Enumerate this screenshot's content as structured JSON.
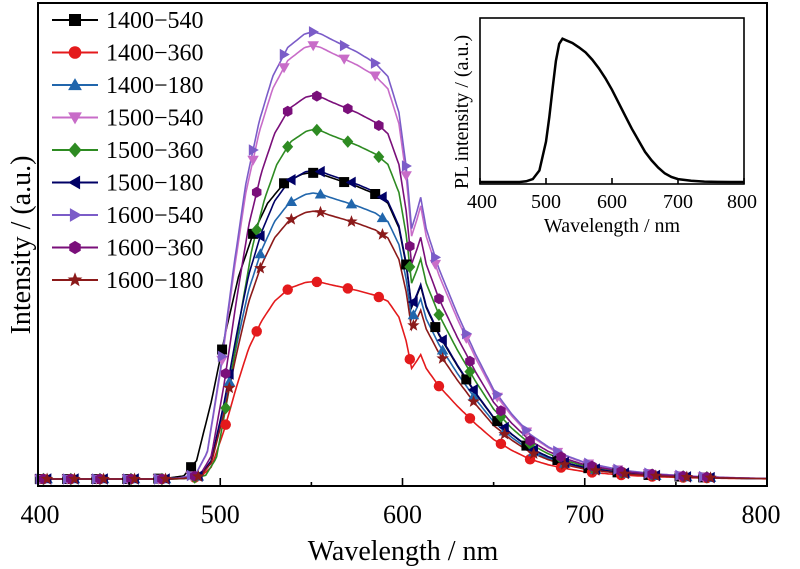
{
  "chart_data": [
    {
      "type": "line",
      "xlabel": "Wavelength / nm",
      "ylabel": "Intensity / (a.u.)",
      "xlim": [
        400,
        800
      ],
      "ylim": [
        0,
        1.0
      ],
      "xticks": [
        "400",
        "500",
        "600",
        "700",
        "800"
      ],
      "yticks_shown": false,
      "legend": {
        "placement": "top-left"
      },
      "peak_x": 550,
      "series": [
        {
          "name": "1400−540",
          "color": "#000000",
          "marker": "square",
          "peak": 0.675,
          "onset": 480
        },
        {
          "name": "1400−360",
          "color": "#e41a1c",
          "marker": "circle",
          "peak": 0.435,
          "onset": 490
        },
        {
          "name": "1400−180",
          "color": "#2166ac",
          "marker": "triangle-up",
          "peak": 0.63,
          "onset": 490
        },
        {
          "name": "1500−540",
          "color": "#c86cc8",
          "marker": "triangle-down",
          "peak": 0.955,
          "onset": 487
        },
        {
          "name": "1500−360",
          "color": "#2e8b22",
          "marker": "diamond",
          "peak": 0.77,
          "onset": 494
        },
        {
          "name": "1500−180",
          "color": "#000066",
          "marker": "triangle-left",
          "peak": 0.68,
          "onset": 490
        },
        {
          "name": "1600−540",
          "color": "#7b5cc8",
          "marker": "triangle-right",
          "peak": 0.985,
          "onset": 487
        },
        {
          "name": "1600−360",
          "color": "#7a0f7a",
          "marker": "hexagon",
          "peak": 0.845,
          "onset": 490
        },
        {
          "name": "1600−180",
          "color": "#8b1a1a",
          "marker": "star",
          "peak": 0.59,
          "onset": 490
        }
      ],
      "spike_x": 608
    },
    {
      "type": "line",
      "role": "inset",
      "xlabel": "Wavelength / nm",
      "ylabel": "PL intensity / (a.u.)",
      "xlim": [
        400,
        800
      ],
      "ylim": [
        0,
        1.0
      ],
      "xticks": [
        "400",
        "500",
        "600",
        "700",
        "800"
      ],
      "series": [
        {
          "color": "#000000",
          "x": [
            400,
            460,
            470,
            480,
            490,
            500,
            505,
            510,
            515,
            520,
            525,
            530,
            540,
            550,
            560,
            570,
            580,
            590,
            600,
            610,
            620,
            630,
            640,
            650,
            660,
            670,
            680,
            690,
            700,
            720,
            740,
            760,
            780,
            800
          ],
          "y": [
            0.0,
            0.0,
            0.005,
            0.02,
            0.08,
            0.28,
            0.45,
            0.65,
            0.84,
            0.96,
            0.995,
            0.985,
            0.965,
            0.935,
            0.9,
            0.85,
            0.79,
            0.72,
            0.64,
            0.55,
            0.46,
            0.37,
            0.29,
            0.21,
            0.15,
            0.1,
            0.06,
            0.035,
            0.02,
            0.008,
            0.003,
            0.001,
            0.0,
            0.0
          ]
        }
      ]
    }
  ]
}
